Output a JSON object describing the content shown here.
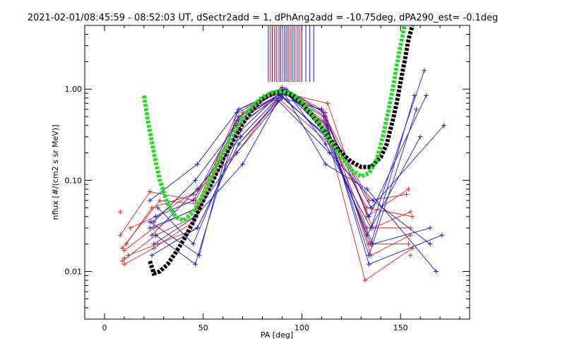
{
  "chart_data": {
    "type": "line",
    "title": "2021-02-01/08:45:59 - 08:52:03 UT, dSectr2add = 1, dPhAng2add = -10.75deg, dPA290_est=  -0.1deg",
    "xlabel": "PA [deg]",
    "ylabel": "nflux [#/(cm2 s sr MeV)]",
    "xlim": [
      -10,
      185
    ],
    "ylim": [
      0.003,
      5.0
    ],
    "yscale": "log",
    "x_ticks": [
      0,
      50,
      100,
      150
    ],
    "x_tick_labels": [
      "0",
      "50",
      "100",
      "150"
    ],
    "y_ticks": [
      0.01,
      0.1,
      1.0
    ],
    "y_tick_labels": [
      "0.01",
      "0.10",
      "1.00"
    ],
    "grid": false,
    "legend": "none",
    "colors": {
      "red_series": "#dd2222",
      "blue_series": "#1a1acc",
      "fit_black": "#000000",
      "fit_green": "#22dd22"
    },
    "vertical_markers": {
      "red_x": [
        84,
        86,
        88,
        89,
        90,
        92,
        93,
        94,
        97,
        99
      ],
      "blue_x": [
        83,
        85,
        87,
        89,
        91,
        92,
        93,
        95,
        96,
        98,
        100,
        102,
        104,
        106
      ],
      "y_top": 5.0,
      "y_bottom": 1.2
    },
    "series": [
      {
        "color": "red",
        "x": [
          8,
          10,
          24,
          47,
          68,
          90,
          112,
          135,
          155
        ],
        "y": [
          0.045,
          0.014,
          0.035,
          0.03,
          0.35,
          0.9,
          0.35,
          0.02,
          0.015
        ],
        "tracks": [
          {
            "x": [
              10,
              25,
              47,
              68,
              90,
              112,
              133,
              155
            ],
            "y": [
              0.017,
              0.03,
              0.05,
              0.5,
              1.0,
              0.4,
              0.03,
              0.03
            ]
          },
          {
            "x": [
              9,
              26,
              46,
              67,
              91,
              111,
              134,
              154
            ],
            "y": [
              0.013,
              0.025,
              0.04,
              0.45,
              0.95,
              0.45,
              0.02,
              0.02
            ]
          },
          {
            "x": [
              11,
              24,
              45,
              69,
              89,
              113,
              133,
              156
            ],
            "y": [
              0.02,
              0.05,
              0.07,
              0.3,
              0.85,
              0.3,
              0.05,
              0.04
            ]
          },
          {
            "x": [
              12,
              27,
              47,
              68,
              92,
              112,
              135,
              155
            ],
            "y": [
              0.015,
              0.02,
              0.03,
              0.25,
              0.9,
              0.55,
              0.015,
              0.025
            ]
          },
          {
            "x": [
              8,
              23,
              46,
              70,
              90,
              110,
              134,
              153
            ],
            "y": [
              0.025,
              0.075,
              0.06,
              0.55,
              1.05,
              0.6,
              0.06,
              0.07
            ]
          },
          {
            "x": [
              13,
              26,
              48,
              67,
              88,
              114,
              132,
              156
            ],
            "y": [
              0.03,
              0.04,
              0.08,
              0.2,
              0.8,
              0.25,
              0.008,
              0.018
            ]
          },
          {
            "x": [
              10,
              25,
              45,
              69,
              91,
              112,
              136,
              155
            ],
            "y": [
              0.012,
              0.018,
              0.035,
              0.4,
              0.98,
              0.5,
              0.03,
              0.045
            ]
          },
          {
            "x": [
              9,
              28,
              47,
              68,
              90,
              113,
              133,
              154
            ],
            "y": [
              0.018,
              0.06,
              0.055,
              0.6,
              0.92,
              0.7,
              0.04,
              0.08
            ]
          }
        ]
      },
      {
        "color": "blue",
        "tracks": [
          {
            "x": [
              23,
              47,
              68,
              90,
              112,
              135,
              157
            ],
            "y": [
              0.06,
              0.15,
              0.6,
              1.0,
              0.35,
              0.02,
              0.85
            ]
          },
          {
            "x": [
              25,
              46,
              67,
              91,
              111,
              134,
              158
            ],
            "y": [
              0.035,
              0.1,
              0.4,
              0.9,
              0.5,
              0.015,
              0.6
            ]
          },
          {
            "x": [
              24,
              47,
              69,
              89,
              113,
              133,
              160
            ],
            "y": [
              0.025,
              0.08,
              0.3,
              0.85,
              0.3,
              0.025,
              0.3
            ]
          },
          {
            "x": [
              26,
              45,
              68,
              92,
              112,
              135,
              162
            ],
            "y": [
              0.04,
              0.06,
              0.5,
              0.95,
              0.25,
              0.03,
              1.6
            ]
          },
          {
            "x": [
              23,
              48,
              67,
              90,
              110,
              134,
              163
            ],
            "y": [
              0.03,
              0.05,
              0.2,
              0.8,
              0.6,
              0.04,
              0.85
            ]
          },
          {
            "x": [
              25,
              46,
              70,
              88,
              114,
              136,
              165
            ],
            "y": [
              0.02,
              0.04,
              0.15,
              0.75,
              0.2,
              0.06,
              0.02
            ]
          },
          {
            "x": [
              24,
              47,
              68,
              91,
              112,
              133,
              168
            ],
            "y": [
              0.015,
              0.03,
              0.25,
              0.9,
              0.15,
              0.08,
              0.01
            ]
          },
          {
            "x": [
              27,
              45,
              69,
              90,
              113,
              135,
              172
            ],
            "y": [
              0.05,
              0.02,
              0.35,
              0.95,
              0.4,
              0.05,
              0.4
            ]
          },
          {
            "x": [
              23,
              48,
              67,
              92,
              111,
              134,
              171
            ],
            "y": [
              0.035,
              0.015,
              0.55,
              1.0,
              0.55,
              0.012,
              0.025
            ]
          },
          {
            "x": [
              26,
              46,
              68,
              89,
              112,
              136,
              165
            ],
            "y": [
              0.025,
              0.012,
              0.45,
              0.88,
              0.3,
              0.02,
              0.03
            ]
          }
        ]
      },
      {
        "name": "",
        "color": "black",
        "style": "thick-dotted",
        "x": [
          23,
          25,
          28,
          32,
          36,
          40,
          45,
          50,
          55,
          60,
          65,
          70,
          75,
          80,
          85,
          90,
          95,
          100,
          105,
          110,
          115,
          120,
          125,
          130,
          135,
          140,
          143,
          146,
          148,
          150,
          152,
          154,
          156
        ],
        "y": [
          0.013,
          0.0095,
          0.01,
          0.012,
          0.016,
          0.022,
          0.035,
          0.06,
          0.1,
          0.17,
          0.27,
          0.42,
          0.6,
          0.78,
          0.9,
          0.93,
          0.86,
          0.7,
          0.52,
          0.38,
          0.27,
          0.2,
          0.16,
          0.14,
          0.14,
          0.18,
          0.25,
          0.45,
          0.7,
          1.2,
          2.0,
          3.5,
          5.0
        ]
      },
      {
        "name": "",
        "color": "green",
        "style": "thick-dotted",
        "x": [
          20,
          22,
          25,
          28,
          32,
          36,
          40,
          45,
          50,
          55,
          60,
          65,
          70,
          75,
          80,
          85,
          90,
          95,
          100,
          105,
          110,
          115,
          120,
          125,
          130,
          134,
          138,
          141,
          144,
          146,
          148,
          150,
          152
        ],
        "y": [
          0.85,
          0.45,
          0.2,
          0.1,
          0.055,
          0.04,
          0.036,
          0.045,
          0.07,
          0.12,
          0.2,
          0.32,
          0.48,
          0.65,
          0.82,
          0.92,
          0.95,
          0.88,
          0.72,
          0.54,
          0.38,
          0.26,
          0.18,
          0.13,
          0.11,
          0.12,
          0.17,
          0.3,
          0.6,
          1.0,
          1.8,
          3.0,
          5.0
        ]
      }
    ]
  }
}
